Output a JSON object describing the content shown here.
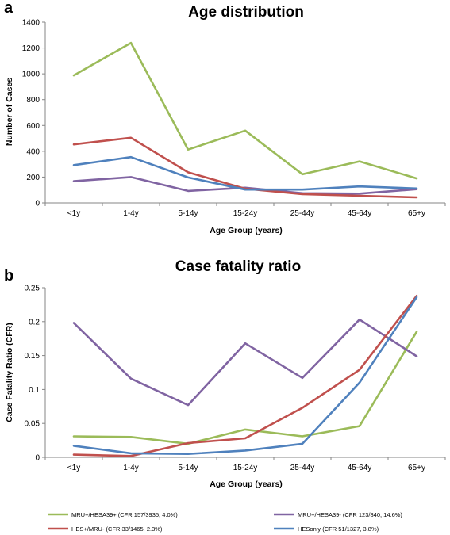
{
  "panels": {
    "a": "a",
    "b": "b"
  },
  "chart_data": [
    {
      "type": "line",
      "title": "Age distribution",
      "xlabel": "Age Group (years)",
      "ylabel": "Number of Cases",
      "categories": [
        "<1y",
        "1-4y",
        "5-14y",
        "15-24y",
        "25-44y",
        "45-64y",
        "65+y"
      ],
      "ylim": [
        0,
        1400
      ],
      "yticks": [
        0,
        200,
        400,
        600,
        800,
        1000,
        1200,
        1400
      ],
      "ytick_labels": [
        "0",
        "200",
        "400",
        "600",
        "800",
        "1000",
        "1200",
        "1400"
      ],
      "grid": false,
      "series": [
        {
          "key": "mru_hesa39_pos",
          "color": "#9bbb59",
          "values": [
            988,
            1240,
            413,
            560,
            222,
            322,
            190
          ]
        },
        {
          "key": "mru_hesa39_neg",
          "color": "#8064a2",
          "values": [
            168,
            200,
            93,
            118,
            75,
            72,
            106
          ]
        },
        {
          "key": "hes_mru_neg",
          "color": "#c0504d",
          "values": [
            453,
            505,
            237,
            110,
            68,
            55,
            43
          ]
        },
        {
          "key": "hesonly",
          "color": "#4f81bd",
          "values": [
            293,
            355,
            197,
            103,
            103,
            128,
            112
          ]
        }
      ]
    },
    {
      "type": "line",
      "title": "Case fatality ratio",
      "xlabel": "Age Group (years)",
      "ylabel": "Case Fatality Ratio (CFR)",
      "categories": [
        "<1y",
        "1-4y",
        "5-14y",
        "15-24y",
        "25-44y",
        "45-64y",
        "65+y"
      ],
      "ylim": [
        0,
        0.25
      ],
      "yticks": [
        0,
        0.05,
        0.1,
        0.15,
        0.2,
        0.25
      ],
      "ytick_labels": [
        "0",
        "0.05",
        "0.1",
        "0.15",
        "0.2",
        "0.25"
      ],
      "grid": false,
      "legend_position": "bottom",
      "series": [
        {
          "key": "mru_hesa39_pos",
          "name": "MRU+/HESA39+ (CFR 157/3935, 4.0%)",
          "color": "#9bbb59",
          "values": [
            0.031,
            0.03,
            0.02,
            0.041,
            0.031,
            0.046,
            0.185
          ]
        },
        {
          "key": "mru_hesa39_neg",
          "name": "MRU+/HESA39- (CFR 123/840, 14.6%)",
          "color": "#8064a2",
          "values": [
            0.198,
            0.116,
            0.077,
            0.168,
            0.117,
            0.203,
            0.149
          ]
        },
        {
          "key": "hes_mru_neg",
          "name": "HES+/MRU- (CFR 33/1465, 2.3%)",
          "color": "#c0504d",
          "values": [
            0.004,
            0.002,
            0.021,
            0.028,
            0.073,
            0.129,
            0.238
          ]
        },
        {
          "key": "hesonly",
          "name": "HESonly (CFR 51/1327, 3.8%)",
          "color": "#4f81bd",
          "values": [
            0.017,
            0.006,
            0.005,
            0.01,
            0.02,
            0.11,
            0.236
          ]
        }
      ]
    }
  ]
}
